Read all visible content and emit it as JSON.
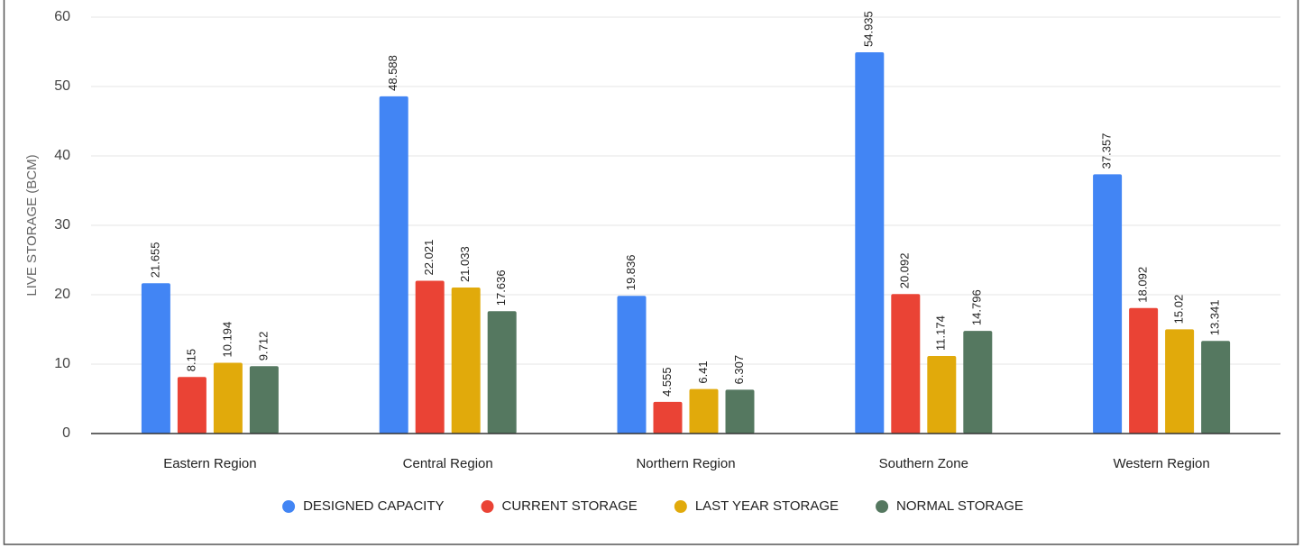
{
  "chart_data": {
    "type": "bar",
    "y_label": "LIVE STORAGE (BCM)",
    "categories": [
      "Eastern Region",
      "Central Region",
      "Northern Region",
      "Southern Zone",
      "Western Region"
    ],
    "series": [
      {
        "name": "DESIGNED CAPACITY",
        "color": "#4285f4",
        "values": [
          21.655,
          48.588,
          19.836,
          54.935,
          37.357
        ]
      },
      {
        "name": "CURRENT STORAGE",
        "color": "#ea4335",
        "values": [
          8.15,
          22.021,
          4.555,
          20.092,
          18.092
        ]
      },
      {
        "name": "LAST YEAR STORAGE",
        "color": "#e1aa0b",
        "values": [
          10.194,
          21.033,
          6.41,
          11.174,
          15.02
        ]
      },
      {
        "name": "NORMAL STORAGE",
        "color": "#557860",
        "values": [
          9.712,
          17.636,
          6.307,
          14.796,
          13.341
        ]
      }
    ],
    "ylim": [
      0,
      60
    ],
    "yticks": [
      0,
      10,
      20,
      30,
      40,
      50,
      60
    ],
    "grid": true,
    "legend": "bottom"
  }
}
